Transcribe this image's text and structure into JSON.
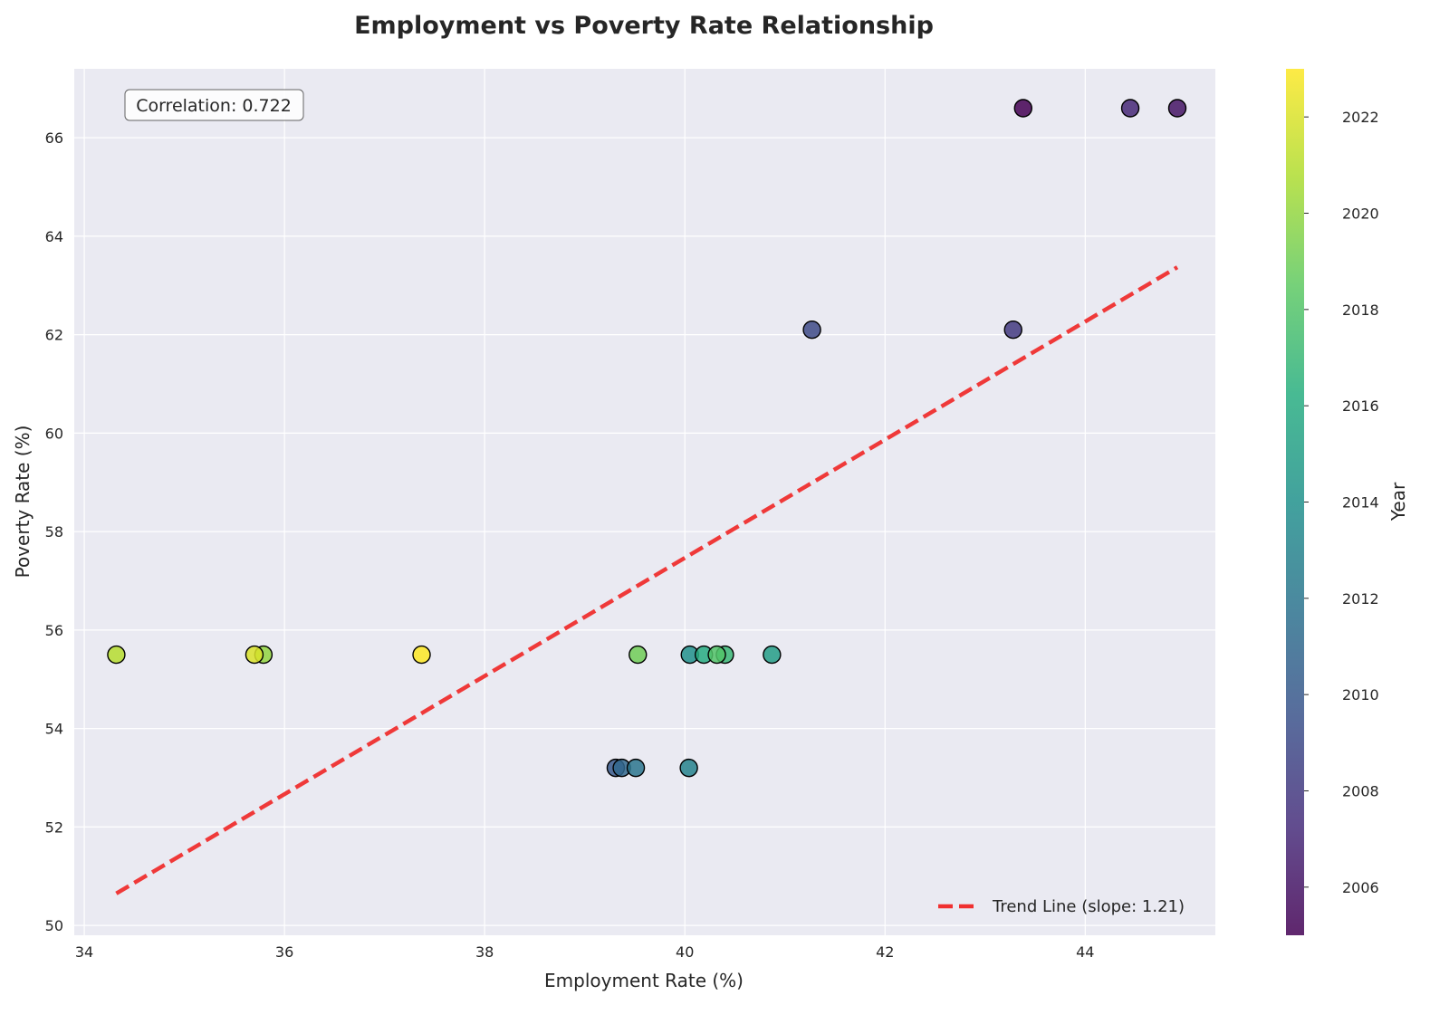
{
  "chart_data": {
    "type": "scatter",
    "title": "Employment vs Poverty Rate Relationship",
    "xlabel": "Employment Rate (%)",
    "ylabel": "Poverty Rate (%)",
    "xlim": [
      33.9,
      45.3
    ],
    "ylim": [
      49.8,
      67.4
    ],
    "xticks": [
      34,
      36,
      38,
      40,
      42,
      44
    ],
    "yticks": [
      50,
      52,
      54,
      56,
      58,
      60,
      62,
      64,
      66
    ],
    "grid": true,
    "colorbar": {
      "label": "Year",
      "min": 2005,
      "max": 2023,
      "ticks": [
        2006,
        2008,
        2010,
        2012,
        2014,
        2016,
        2018,
        2020,
        2022
      ],
      "colormap": "viridis"
    },
    "points": [
      {
        "x": 43.38,
        "y": 66.6,
        "year": 2005
      },
      {
        "x": 44.92,
        "y": 66.6,
        "year": 2006
      },
      {
        "x": 44.45,
        "y": 66.6,
        "year": 2007
      },
      {
        "x": 43.28,
        "y": 62.1,
        "year": 2008
      },
      {
        "x": 41.27,
        "y": 62.1,
        "year": 2009
      },
      {
        "x": 39.31,
        "y": 53.2,
        "year": 2010
      },
      {
        "x": 39.37,
        "y": 53.2,
        "year": 2011
      },
      {
        "x": 39.51,
        "y": 53.2,
        "year": 2012
      },
      {
        "x": 40.04,
        "y": 53.2,
        "year": 2013
      },
      {
        "x": 40.05,
        "y": 55.5,
        "year": 2014
      },
      {
        "x": 40.87,
        "y": 55.5,
        "year": 2015
      },
      {
        "x": 40.19,
        "y": 55.5,
        "year": 2016
      },
      {
        "x": 40.4,
        "y": 55.5,
        "year": 2017
      },
      {
        "x": 40.32,
        "y": 55.5,
        "year": 2018
      },
      {
        "x": 39.53,
        "y": 55.5,
        "year": 2019
      },
      {
        "x": 35.79,
        "y": 55.5,
        "year": 2020
      },
      {
        "x": 34.32,
        "y": 55.5,
        "year": 2021
      },
      {
        "x": 35.7,
        "y": 55.5,
        "year": 2022
      },
      {
        "x": 37.37,
        "y": 55.5,
        "year": 2023
      }
    ],
    "trend_line": {
      "name": "Trend Line (slope: 1.21)",
      "slope": 1.21,
      "x": [
        34.32,
        44.92
      ],
      "y": [
        50.65,
        63.37
      ],
      "color": "#f03030",
      "style": "dashed"
    },
    "annotation": "Correlation: 0.722",
    "legend_position": "lower-right"
  },
  "colors": {
    "plot_background": "#eaeaf2",
    "grid": "#ffffff",
    "trend": "#f03030"
  }
}
